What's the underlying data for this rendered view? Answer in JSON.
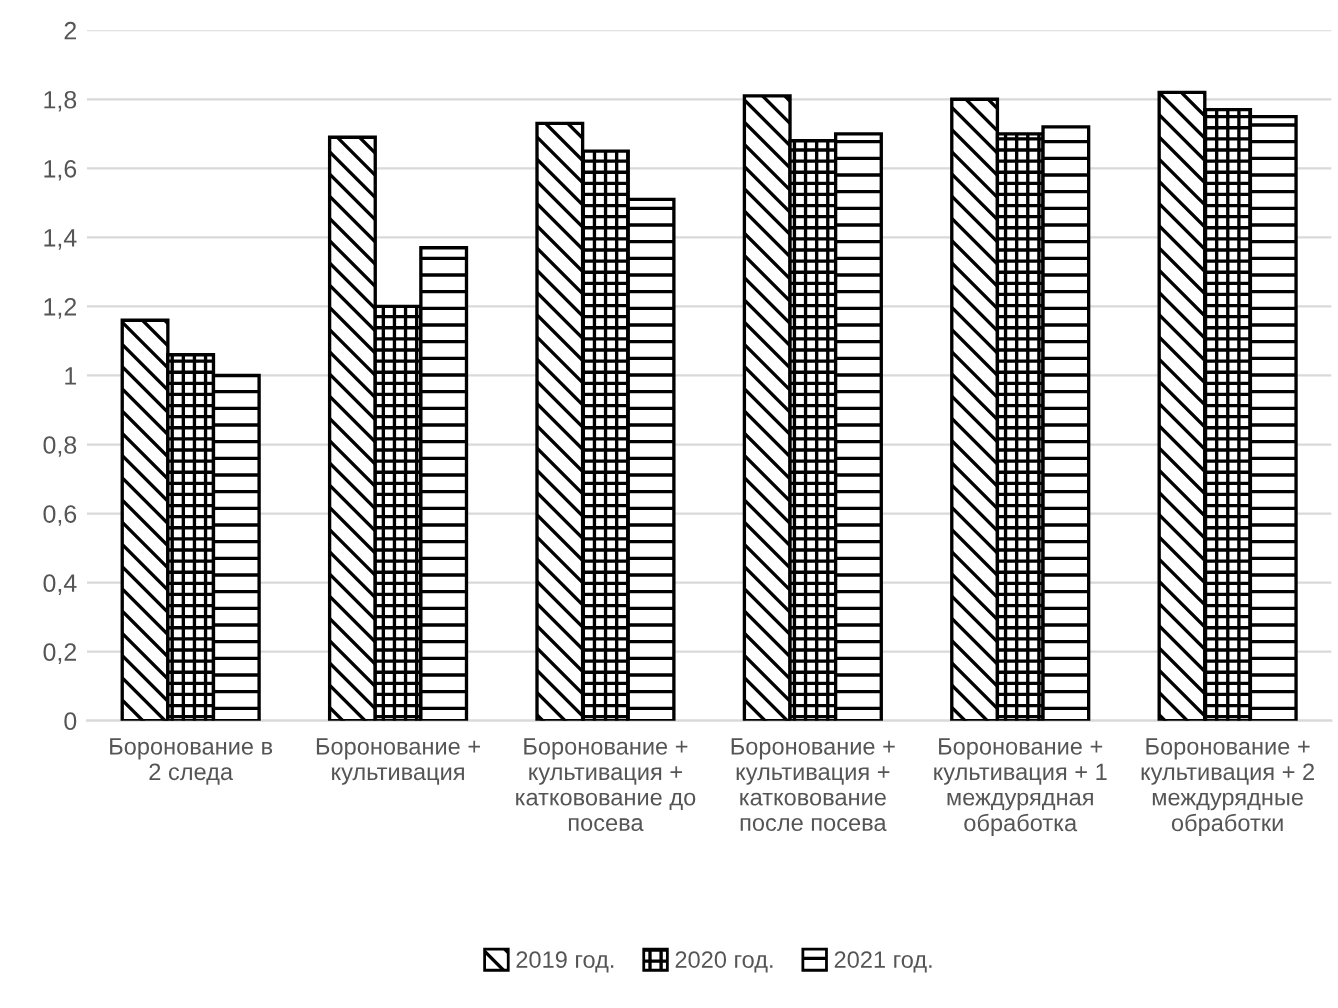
{
  "chart_data": {
    "type": "bar",
    "categories": [
      "Боронование в\n2 следа",
      "Боронование +\nкультивация",
      "Боронование +\nкультивация +\nкатковование до\nпосева",
      "Боронование +\nкультивация +\nкатковование\nпосле посева",
      "Боронование +\nкультивация + 1\nмеждурядная\nобработка",
      "Боронование +\nкультивация + 2\nмеждурядные\nобработки"
    ],
    "series": [
      {
        "name": "2019 год.",
        "color": "#000000",
        "values": [
          1.16,
          1.69,
          1.73,
          1.81,
          1.8,
          1.82
        ]
      },
      {
        "name": "2020 год.",
        "color": "#000000",
        "values": [
          1.06,
          1.2,
          1.65,
          1.68,
          1.7,
          1.77
        ]
      },
      {
        "name": "2021 год.",
        "color": "#000000",
        "values": [
          1.0,
          1.37,
          1.51,
          1.7,
          1.72,
          1.75
        ]
      }
    ],
    "ylim": [
      0,
      2
    ],
    "yticks": [
      0,
      {
        "value": 0.2,
        "label": "0,2"
      },
      {
        "value": 0.4,
        "label": "0,4"
      },
      {
        "value": 0.6,
        "label": "0,6"
      },
      {
        "value": 0.8,
        "label": "0,8"
      },
      1,
      {
        "value": 1.2,
        "label": "1,2"
      },
      {
        "value": 1.4,
        "label": "1,4"
      },
      {
        "value": 1.6,
        "label": "1,6"
      },
      {
        "value": 1.8,
        "label": "1,8"
      },
      2
    ],
    "grid": "y",
    "legend": "bottom"
  }
}
